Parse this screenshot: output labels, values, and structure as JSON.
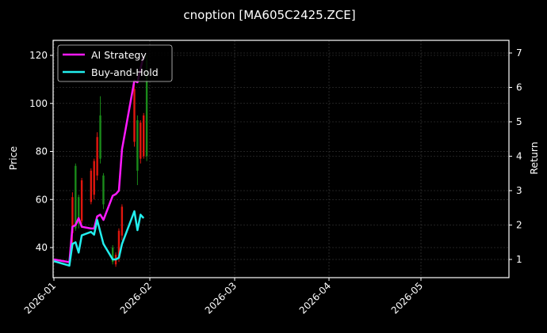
{
  "chart_data": {
    "type": "line",
    "title": "cnoption [MA605C2425.ZCE]",
    "xlabel": "",
    "ylabel": "Price",
    "y2label": "Return",
    "grid": true,
    "legend_position": "upper left",
    "ylim": [
      27,
      126
    ],
    "y2lim": [
      0.45,
      7.3
    ],
    "xlim": [
      "2025-12-31",
      "2026-05-30"
    ],
    "xticks": [
      "2026-01",
      "2026-02",
      "2026-03",
      "2026-04",
      "2026-05"
    ],
    "yticks": [
      40,
      60,
      80,
      100,
      120
    ],
    "y2ticks": [
      1,
      2,
      3,
      4,
      5,
      6,
      7
    ],
    "colors": {
      "background": "#000000",
      "ai_strategy": "#ff1aff",
      "buy_and_hold": "#22eeee",
      "candle_up": "#1a8a1a",
      "candle_down": "#e0160e",
      "grid": "#444444",
      "axis": "#ffffff"
    },
    "candles": [
      {
        "day": 6,
        "high": 63,
        "low": 42,
        "open": 61,
        "close": 46,
        "dir": "down"
      },
      {
        "day": 7,
        "high": 75,
        "low": 47,
        "open": 48,
        "close": 74,
        "dir": "up"
      },
      {
        "day": 8,
        "high": 62,
        "low": 48,
        "open": 50,
        "close": 61,
        "dir": "up"
      },
      {
        "day": 9,
        "high": 69,
        "low": 50,
        "open": 68,
        "close": 51,
        "dir": "down"
      },
      {
        "day": 12,
        "high": 73,
        "low": 58,
        "open": 72,
        "close": 59,
        "dir": "down"
      },
      {
        "day": 13,
        "high": 77,
        "low": 60,
        "open": 76,
        "close": 62,
        "dir": "down"
      },
      {
        "day": 14,
        "high": 88,
        "low": 68,
        "open": 86,
        "close": 70,
        "dir": "down"
      },
      {
        "day": 15,
        "high": 103,
        "low": 75,
        "open": 77,
        "close": 95,
        "dir": "up"
      },
      {
        "day": 16,
        "high": 71,
        "low": 56,
        "open": 58,
        "close": 70,
        "dir": "up"
      },
      {
        "day": 19,
        "high": 41,
        "low": 33,
        "open": 34,
        "close": 40,
        "dir": "up"
      },
      {
        "day": 20,
        "high": 38,
        "low": 32,
        "open": 37,
        "close": 33,
        "dir": "down"
      },
      {
        "day": 21,
        "high": 48,
        "low": 34,
        "open": 47,
        "close": 36,
        "dir": "down"
      },
      {
        "day": 22,
        "high": 58,
        "low": 43,
        "open": 57,
        "close": 45,
        "dir": "down"
      },
      {
        "day": 26,
        "high": 108,
        "low": 82,
        "open": 106,
        "close": 84,
        "dir": "down"
      },
      {
        "day": 27,
        "high": 95,
        "low": 66,
        "open": 72,
        "close": 93,
        "dir": "up"
      },
      {
        "day": 28,
        "high": 93,
        "low": 75,
        "open": 92,
        "close": 77,
        "dir": "down"
      },
      {
        "day": 29,
        "high": 96,
        "low": 77,
        "open": 95,
        "close": 78,
        "dir": "down"
      },
      {
        "day": 30,
        "high": 120,
        "low": 76,
        "open": 78,
        "close": 118,
        "dir": "up"
      }
    ],
    "series": [
      {
        "name": "AI Strategy",
        "x_days": [
          0,
          5,
          6,
          7,
          8,
          9,
          12,
          13,
          14,
          15,
          16,
          19,
          20,
          21,
          22,
          26,
          27,
          28,
          29
        ],
        "values": [
          1.0,
          0.92,
          1.95,
          2.0,
          2.2,
          1.95,
          1.9,
          1.9,
          2.25,
          2.3,
          2.15,
          2.85,
          2.9,
          3.0,
          4.2,
          6.2,
          6.15,
          6.55,
          6.9
        ]
      },
      {
        "name": "Buy-and-Hold",
        "x_days": [
          0,
          5,
          6,
          7,
          8,
          9,
          12,
          13,
          14,
          15,
          16,
          19,
          20,
          21,
          22,
          26,
          27,
          28,
          29
        ],
        "values": [
          0.95,
          0.82,
          1.45,
          1.5,
          1.2,
          1.7,
          1.8,
          1.72,
          2.15,
          1.8,
          1.45,
          1.0,
          1.0,
          1.05,
          1.45,
          2.4,
          1.85,
          2.3,
          2.2
        ]
      }
    ]
  },
  "legend": {
    "items": [
      {
        "label": "AI Strategy"
      },
      {
        "label": "Buy-and-Hold"
      }
    ]
  }
}
